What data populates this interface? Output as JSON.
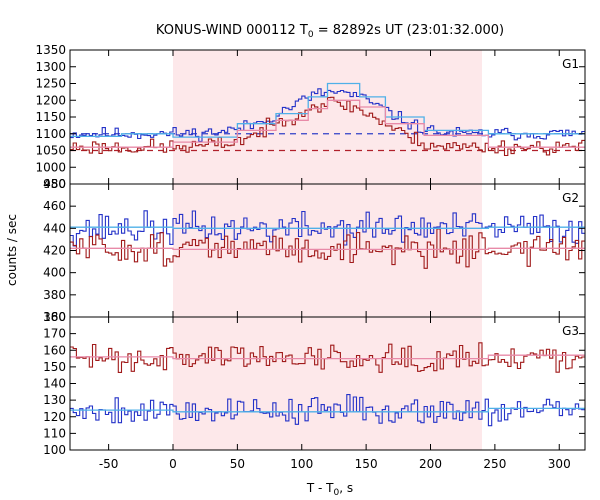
{
  "chart_data": {
    "type": "line",
    "title": {
      "prefix": "KONUS-WIND 000112 T",
      "subscript": "0",
      "suffix": " = 82892s UT (23:01:32.000)"
    },
    "xlabel": {
      "prefix": "T - T",
      "subscript": "0",
      "suffix": ", s"
    },
    "ylabel": "counts / sec",
    "xlim": [
      -80,
      320
    ],
    "xticks": [
      -50,
      0,
      50,
      100,
      150,
      200,
      250,
      300
    ],
    "shaded_interval": [
      0,
      240
    ],
    "colors": {
      "shade": "#fde8ea",
      "series_red": "#a01a1a",
      "series_blue": "#2432c8",
      "model_light_blue": "#4fb0e8",
      "model_pink": "#e88aa8",
      "background_red": "#b0202a",
      "background_blue": "#3040c8"
    },
    "panels": [
      {
        "name": "G1",
        "ylim": [
          950,
          1350
        ],
        "yticks": [
          950,
          1000,
          1050,
          1100,
          1150,
          1200,
          1250,
          1300,
          1350
        ],
        "background_levels": {
          "blue": 1100,
          "red": 1050
        },
        "series": [
          {
            "color_key": "series_blue",
            "baseline": 1100,
            "noise": 13,
            "seed": 11,
            "bumps": [
              {
                "t": 123,
                "amp": 100,
                "sigma": 28
              },
              {
                "t": 90,
                "amp": 30,
                "sigma": 30
              },
              {
                "t": 160,
                "amp": 35,
                "sigma": 22
              }
            ]
          },
          {
            "color_key": "series_red",
            "baseline": 1060,
            "noise": 16,
            "seed": 23,
            "bumps": [
              {
                "t": 125,
                "amp": 100,
                "sigma": 28
              },
              {
                "t": 90,
                "amp": 45,
                "sigma": 30
              },
              {
                "t": 160,
                "amp": 30,
                "sigma": 22
              }
            ]
          }
        ],
        "models": [
          {
            "color_key": "model_light_blue",
            "steps": [
              [
                -80,
                1092
              ],
              [
                -40,
                1100
              ],
              [
                0,
                1090
              ],
              [
                50,
                1130
              ],
              [
                80,
                1160
              ],
              [
                105,
                1210
              ],
              [
                120,
                1250
              ],
              [
                145,
                1210
              ],
              [
                165,
                1150
              ],
              [
                195,
                1110
              ],
              [
                245,
                1100
              ],
              [
                320,
                1100
              ]
            ]
          },
          {
            "color_key": "model_pink",
            "steps": [
              [
                -80,
                1060
              ],
              [
                0,
                1075
              ],
              [
                50,
                1110
              ],
              [
                80,
                1140
              ],
              [
                105,
                1175
              ],
              [
                120,
                1200
              ],
              [
                145,
                1180
              ],
              [
                165,
                1130
              ],
              [
                195,
                1095
              ],
              [
                245,
                1060
              ],
              [
                320,
                1055
              ]
            ]
          }
        ]
      },
      {
        "name": "G2",
        "ylim": [
          360,
          480
        ],
        "yticks": [
          360,
          380,
          400,
          420,
          440,
          460,
          480
        ],
        "background_levels": {},
        "series": [
          {
            "color_key": "series_blue",
            "baseline": 440,
            "noise": 10,
            "seed": 37,
            "bumps": []
          },
          {
            "color_key": "series_red",
            "baseline": 422,
            "noise": 10,
            "seed": 51,
            "bumps": []
          }
        ],
        "models": [
          {
            "color_key": "model_light_blue",
            "steps": [
              [
                -80,
                441
              ],
              [
                0,
                440
              ],
              [
                245,
                441
              ],
              [
                320,
                441
              ]
            ]
          },
          {
            "color_key": "model_pink",
            "steps": [
              [
                -80,
                422
              ],
              [
                0,
                421
              ],
              [
                245,
                422
              ],
              [
                320,
                422
              ]
            ]
          }
        ]
      },
      {
        "name": "G3",
        "ylim": [
          100,
          180
        ],
        "yticks": [
          100,
          110,
          120,
          130,
          140,
          150,
          160,
          170,
          180
        ],
        "background_levels": {},
        "series": [
          {
            "color_key": "series_red",
            "baseline": 156,
            "noise": 6,
            "seed": 63,
            "bumps": []
          },
          {
            "color_key": "series_blue",
            "baseline": 124,
            "noise": 6,
            "seed": 79,
            "bumps": []
          }
        ],
        "models": [
          {
            "color_key": "model_pink",
            "steps": [
              [
                -80,
                156
              ],
              [
                0,
                155
              ],
              [
                245,
                157
              ],
              [
                320,
                157
              ]
            ]
          },
          {
            "color_key": "model_light_blue",
            "steps": [
              [
                -80,
                124
              ],
              [
                0,
                123
              ],
              [
                245,
                125
              ],
              [
                320,
                125
              ]
            ]
          }
        ]
      }
    ]
  }
}
